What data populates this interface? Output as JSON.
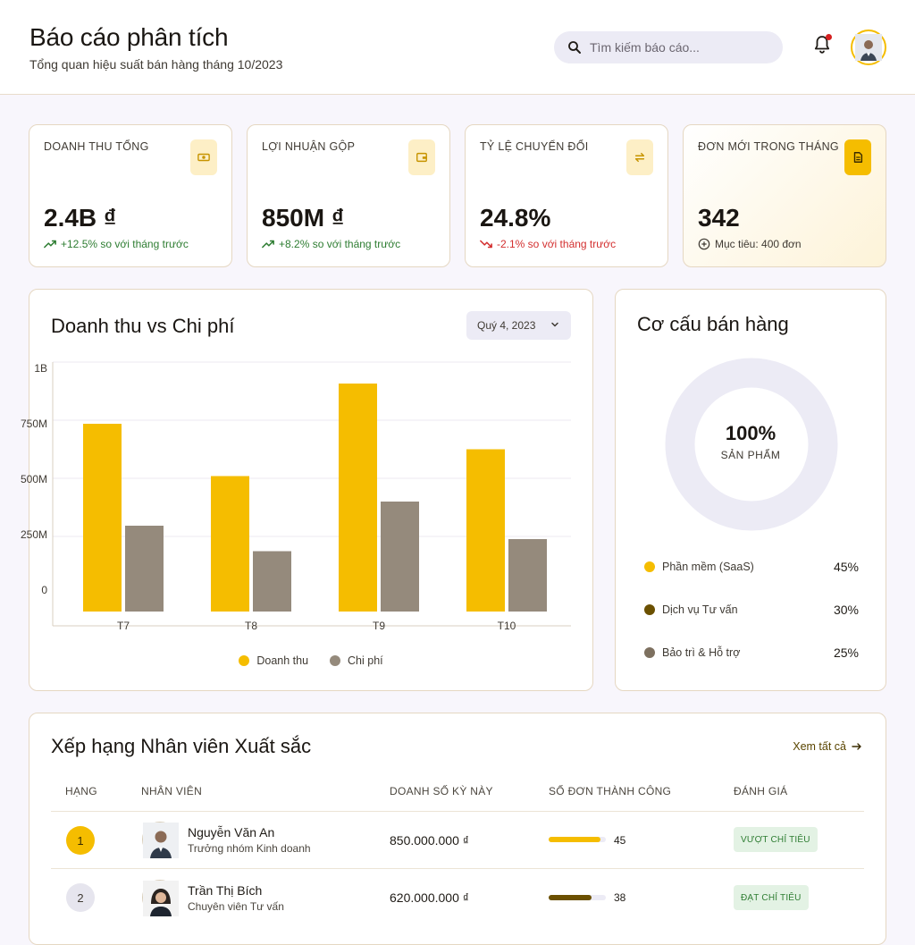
{
  "header": {
    "title": "Báo cáo phân tích",
    "subtitle": "Tổng quan hiệu suất bán hàng tháng 10/2023",
    "search_placeholder": "Tìm kiếm báo cáo..."
  },
  "kpis": [
    {
      "label": "DOANH THU TỔNG",
      "value": "2.4B ₫",
      "delta": "+12.5% so với tháng trước",
      "trend": "up",
      "icon": "money-icon"
    },
    {
      "label": "LỢI NHUẬN GỘP",
      "value": "850M ₫",
      "delta": "+8.2% so với tháng trước",
      "trend": "up",
      "icon": "wallet-icon"
    },
    {
      "label": "TỶ LỆ CHUYỂN ĐỔI",
      "value": "24.8%",
      "delta": "-2.1% so với tháng trước",
      "trend": "down",
      "icon": "swap-icon"
    },
    {
      "label": "ĐƠN MỚI TRONG THÁNG",
      "value": "342",
      "delta": "Mục tiêu: 400 đơn",
      "trend": "target",
      "icon": "document-icon"
    }
  ],
  "revenue_chart": {
    "title": "Doanh thu vs Chi phí",
    "period": "Quý 4, 2023",
    "legend": [
      "Doanh thu",
      "Chi phí"
    ]
  },
  "chart_data": {
    "type": "bar",
    "categories": [
      "T7",
      "T8",
      "T9",
      "T10"
    ],
    "series": [
      {
        "name": "Doanh thu",
        "values": [
          700,
          505,
          850,
          605
        ],
        "color": "#f5bd00"
      },
      {
        "name": "Chi phí",
        "values": [
          320,
          225,
          410,
          270
        ],
        "color": "#958a7c"
      }
    ],
    "yticks": [
      "1B",
      "750M",
      "500M",
      "250M",
      "0"
    ],
    "ylim": [
      0,
      1000
    ],
    "grid": true,
    "legend_position": "bottom"
  },
  "sales_mix": {
    "title": "Cơ cấu bán hàng",
    "center_value": "100%",
    "center_label": "SẢN PHẨM",
    "items": [
      {
        "name": "Phần mềm (SaaS)",
        "pct": "45%",
        "color": "#f5bd00"
      },
      {
        "name": "Dịch vụ Tư vấn",
        "pct": "30%",
        "color": "#6b5000"
      },
      {
        "name": "Bảo trì & Hỗ trợ",
        "pct": "25%",
        "color": "#7d705f"
      }
    ]
  },
  "leaderboard": {
    "title": "Xếp hạng Nhân viên Xuất sắc",
    "view_all": "Xem tất cả",
    "columns": [
      "HẠNG",
      "NHÂN VIÊN",
      "DOANH SỐ KỲ NÀY",
      "SỐ ĐƠN THÀNH CÔNG",
      "ĐÁNH GIÁ"
    ],
    "rows": [
      {
        "rank": "1",
        "name": "Nguyễn Văn An",
        "role": "Trưởng nhóm Kinh doanh",
        "sales": "850.000.000 ₫",
        "orders": "45",
        "progress": 0.9,
        "bar_color": "#f5bd00",
        "badge": "VƯỢT CHỈ TIÊU"
      },
      {
        "rank": "2",
        "name": "Trần Thị Bích",
        "role": "Chuyên viên Tư vấn",
        "sales": "620.000.000 ₫",
        "orders": "38",
        "progress": 0.75,
        "bar_color": "#6b5000",
        "badge": "ĐẠT CHỈ TIÊU"
      }
    ]
  }
}
